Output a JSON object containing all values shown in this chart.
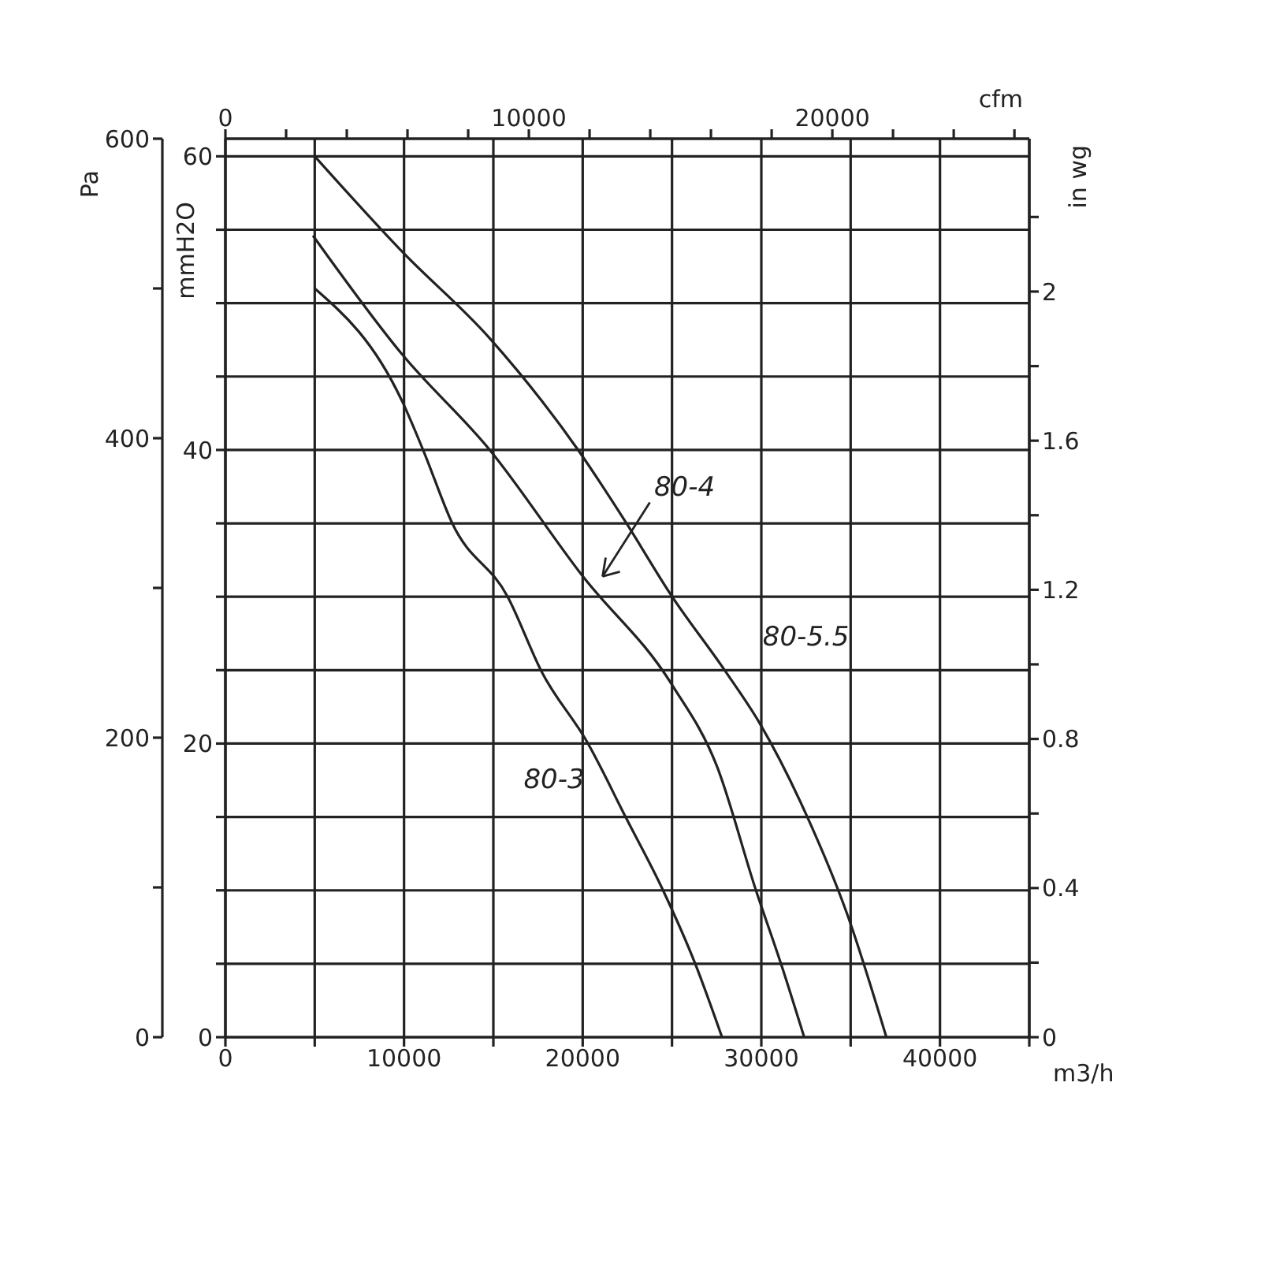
{
  "chart_data": {
    "type": "line",
    "xlabel": "m3/h",
    "ylabel": "mmH2O",
    "y2label": "Pa",
    "y3label": "in wg",
    "x2label": "cfm",
    "xlim": [
      0,
      45000
    ],
    "xticks": [
      0,
      {
        "value": 5000,
        "label": null
      },
      10000,
      {
        "value": 15000,
        "label": null
      },
      20000,
      {
        "value": 25000,
        "label": null
      },
      30000,
      {
        "value": 35000,
        "label": null
      },
      40000,
      {
        "value": 45000,
        "label": null
      }
    ],
    "ylim": [
      0,
      61.2
    ],
    "yticks": [
      0,
      {
        "value": 5,
        "label": null
      },
      {
        "value": 10,
        "label": null
      },
      {
        "value": 15,
        "label": null
      },
      20,
      {
        "value": 25,
        "label": null
      },
      {
        "value": 30,
        "label": null
      },
      {
        "value": 35,
        "label": null
      },
      40,
      {
        "value": 45,
        "label": null
      },
      {
        "value": 50,
        "label": null
      },
      {
        "value": 55,
        "label": null
      },
      60
    ],
    "y2lim": [
      0,
      600
    ],
    "y2ticks": [
      0,
      {
        "value": 100,
        "label": null
      },
      200,
      {
        "value": 300,
        "label": null
      },
      400,
      {
        "value": 500,
        "label": null
      },
      600
    ],
    "y3lim": [
      0,
      2.41
    ],
    "y3ticks": [
      0,
      {
        "value": 0.2,
        "label": null
      },
      0.4,
      {
        "value": 0.6,
        "label": null
      },
      0.8,
      {
        "value": 1,
        "label": null
      },
      1.2,
      {
        "value": 1.4,
        "label": null
      },
      1.6,
      {
        "value": 1.8,
        "label": null
      },
      2,
      {
        "value": 2.2,
        "label": null
      }
    ],
    "x2lim": [
      0,
      26490
    ],
    "x2ticks": [
      0,
      {
        "value": 2000,
        "label": null
      },
      {
        "value": 4000,
        "label": null
      },
      {
        "value": 6000,
        "label": null
      },
      {
        "value": 8000,
        "label": null
      },
      10000,
      {
        "value": 12000,
        "label": null
      },
      {
        "value": 14000,
        "label": null
      },
      {
        "value": 16000,
        "label": null
      },
      {
        "value": 18000,
        "label": null
      },
      20000,
      {
        "value": 22000,
        "label": null
      },
      {
        "value": 24000,
        "label": null
      },
      {
        "value": 26000,
        "label": null
      }
    ],
    "grid": true,
    "marker": "none",
    "line_style": "solid",
    "series": [
      {
        "color": "#222222",
        "x": [
          5000,
          9900,
          14800,
          19800,
          22400,
          24900,
          28000,
          29900,
          32500,
          34800,
          37000
        ],
        "values": [
          60,
          53.5,
          47.6,
          39.9,
          35.1,
          30.2,
          24.9,
          21.4,
          15.2,
          8.4,
          0
        ]
      },
      {
        "color": "#222222",
        "x": [
          4900,
          9900,
          14800,
          20000,
          25000,
          27500,
          29700,
          31100,
          32400
        ],
        "values": [
          54.6,
          46.5,
          40,
          31.4,
          24,
          18.5,
          10,
          5,
          0
        ]
      },
      {
        "color": "#222222",
        "x": [
          5000,
          9900,
          11100,
          12700,
          15800,
          17700,
          20300,
          22400,
          24500,
          26300,
          27800
        ],
        "values": [
          51,
          43.3,
          39.9,
          35,
          30,
          24.9,
          20,
          15,
          10,
          5,
          0
        ]
      }
    ],
    "annotations": [
      "80-4",
      "80-5.5",
      "80-3"
    ]
  }
}
